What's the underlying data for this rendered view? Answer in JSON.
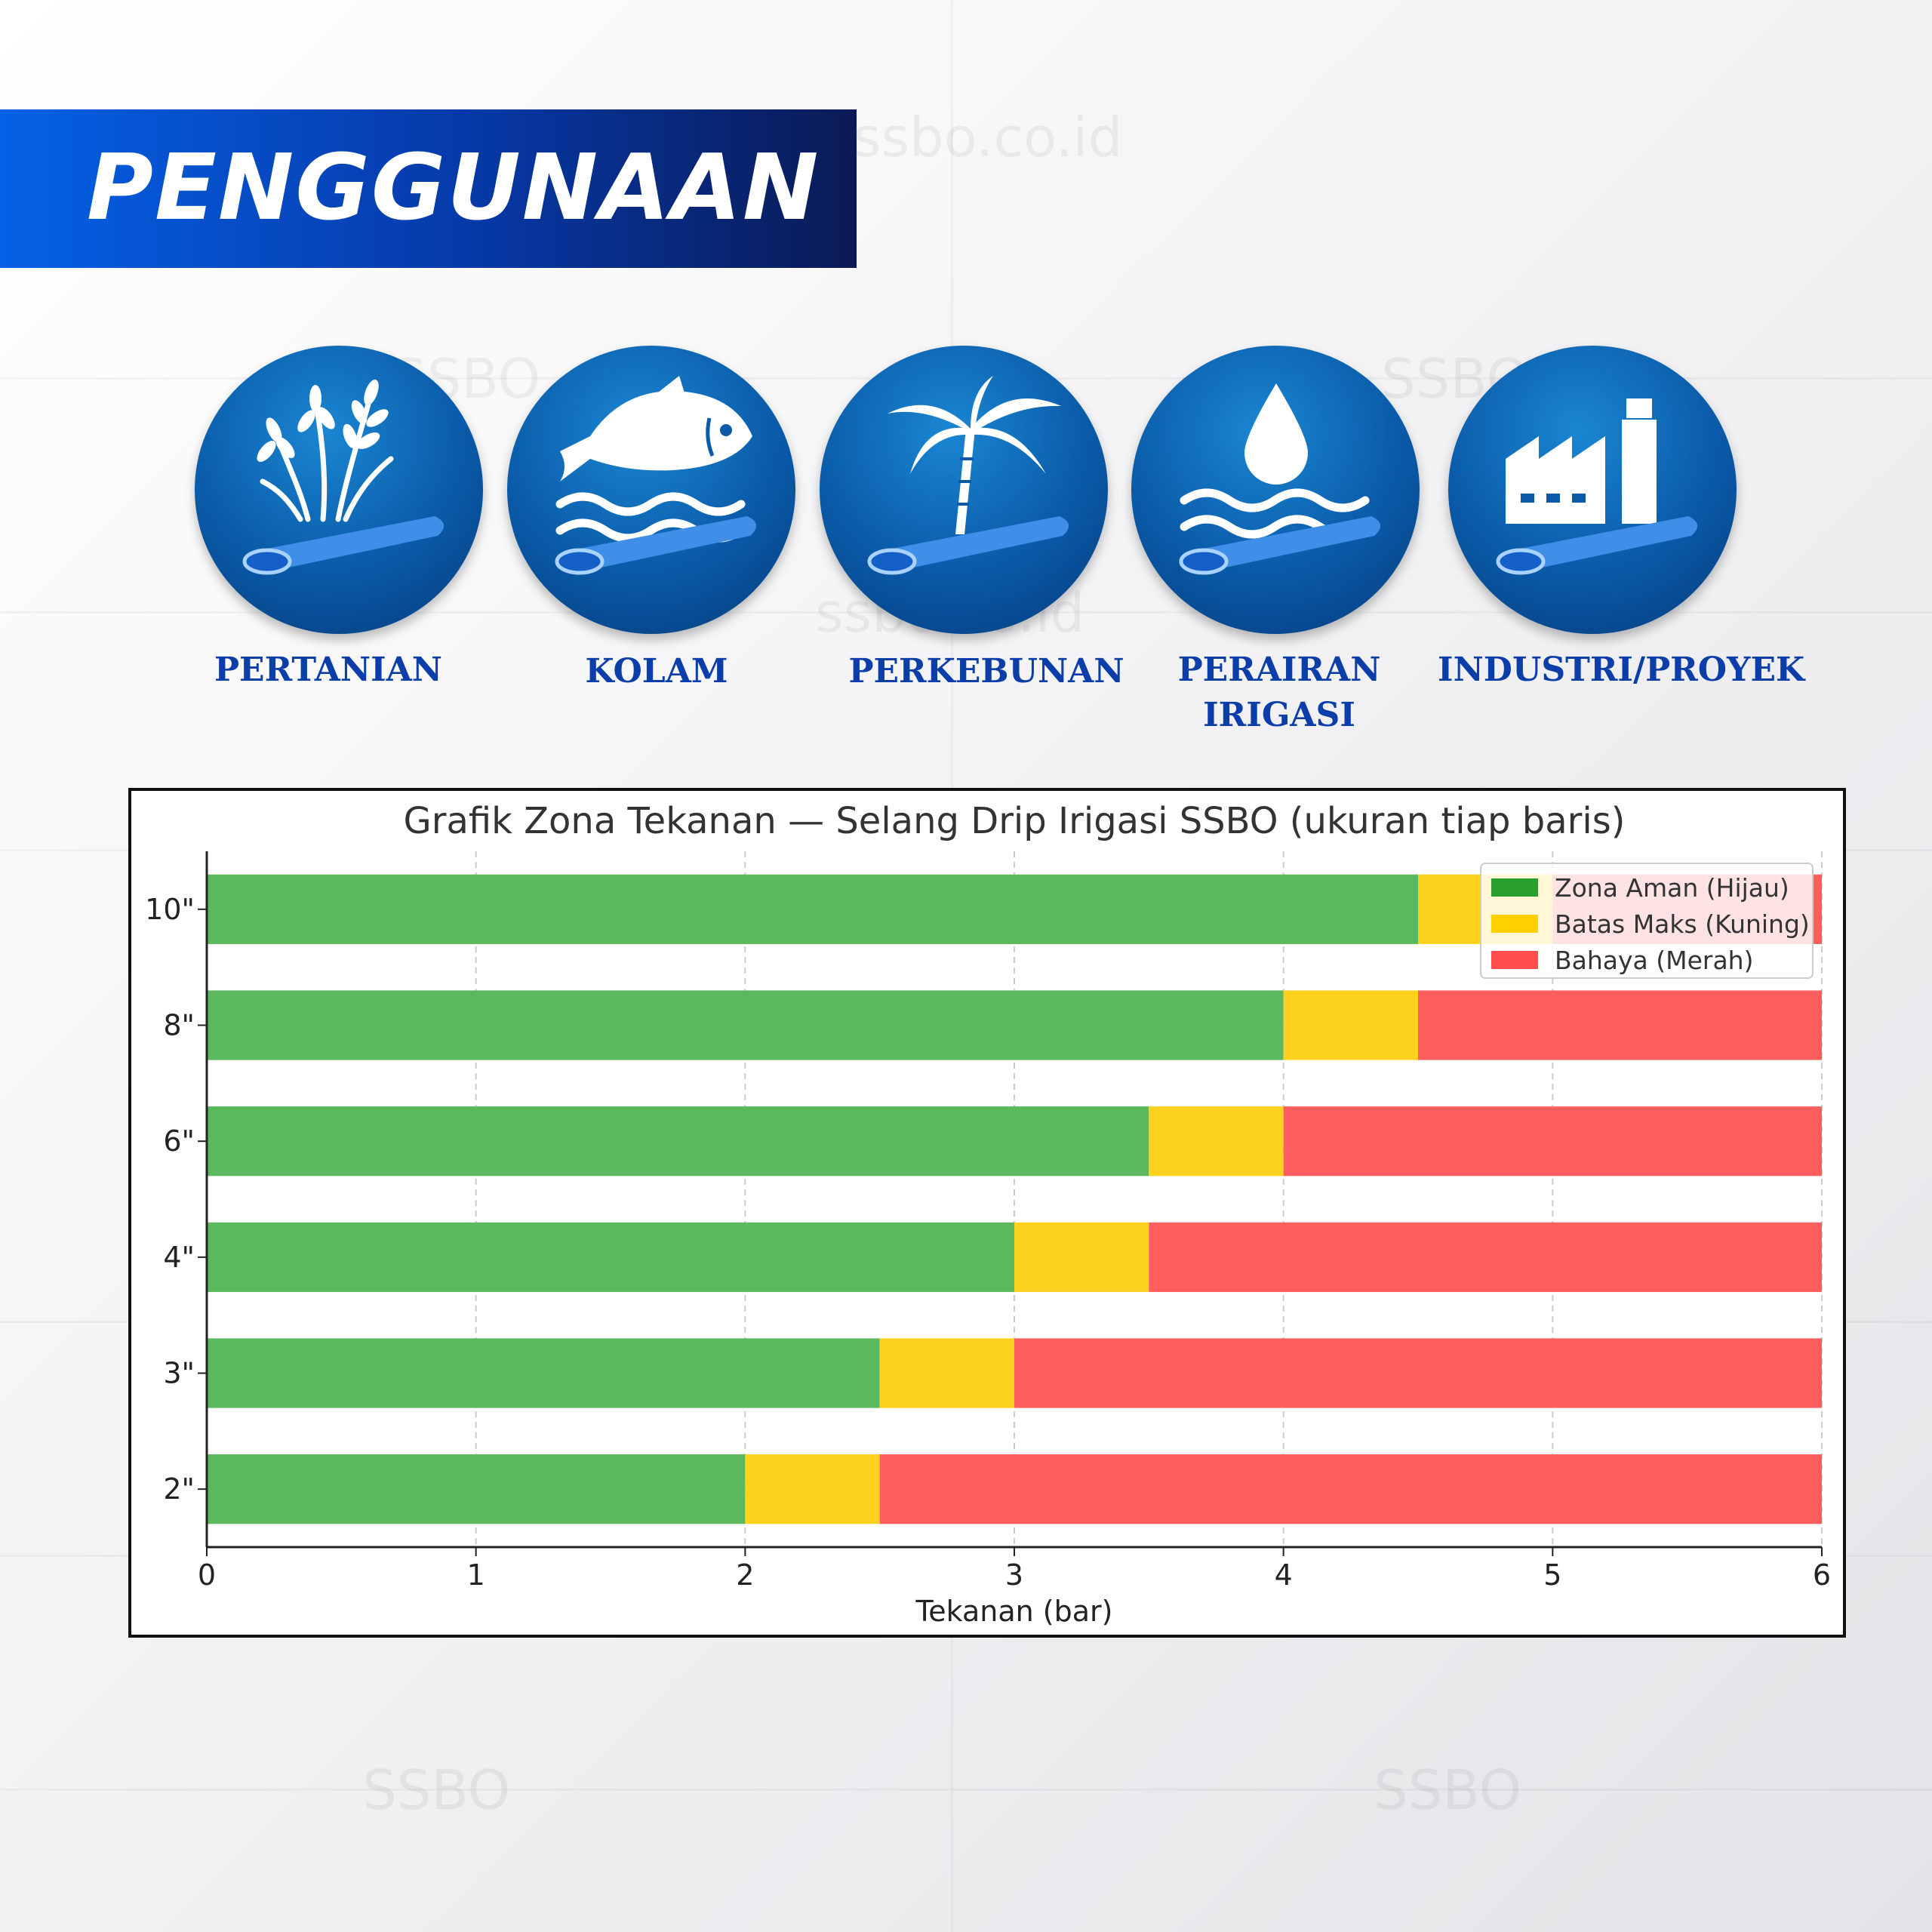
{
  "header": {
    "title": "PENGGUNAAN"
  },
  "watermark": {
    "site": "ssbo.co.id",
    "brand": "SSBO"
  },
  "categories": [
    {
      "label": "PERTANIAN",
      "icon": "rice-plant-icon"
    },
    {
      "label": "KOLAM",
      "icon": "fish-icon"
    },
    {
      "label": "PERKEBUNAN",
      "icon": "palm-tree-icon"
    },
    {
      "label": "PERAIRAN IRIGASI",
      "label_lines": [
        "PERAIRAN",
        "IRIGASI"
      ],
      "icon": "water-drop-icon"
    },
    {
      "label": "INDUSTRI/PROYEK",
      "icon": "factory-icon"
    }
  ],
  "colors": {
    "safe": "#5cb85c",
    "limit": "#fdd21f",
    "danger": "#ff5e5e",
    "brand_blue": "#0b3ea8"
  },
  "chart_data": {
    "type": "bar",
    "orientation": "horizontal",
    "stacked": true,
    "title": "Grafik Zona Tekanan — Selang Drip Irigasi SSBO (ukuran tiap baris)",
    "xlabel": "Tekanan (bar)",
    "ylabel": "",
    "xlim": [
      0,
      6
    ],
    "x_ticks": [
      "0",
      "1",
      "2",
      "3",
      "4",
      "5",
      "6"
    ],
    "grid": true,
    "legend_position": "top-right",
    "categories": [
      "2\"",
      "3\"",
      "4\"",
      "6\"",
      "8\"",
      "10\""
    ],
    "series": [
      {
        "name": "Zona Aman (Hijau)",
        "color": "#5cb85c",
        "legend_color": "#2ca02c",
        "values": [
          2.0,
          2.5,
          3.0,
          3.5,
          4.0,
          4.5
        ]
      },
      {
        "name": "Batas Maks (Kuning)",
        "color": "#fdd21f",
        "legend_color": "#ffd000",
        "values": [
          0.5,
          0.5,
          0.5,
          0.5,
          0.5,
          0.5
        ]
      },
      {
        "name": "Bahaya (Merah)",
        "color": "#ff5e5e",
        "legend_color": "#ff4d4d",
        "values": [
          3.5,
          3.0,
          2.5,
          2.0,
          1.5,
          1.0
        ]
      }
    ]
  }
}
